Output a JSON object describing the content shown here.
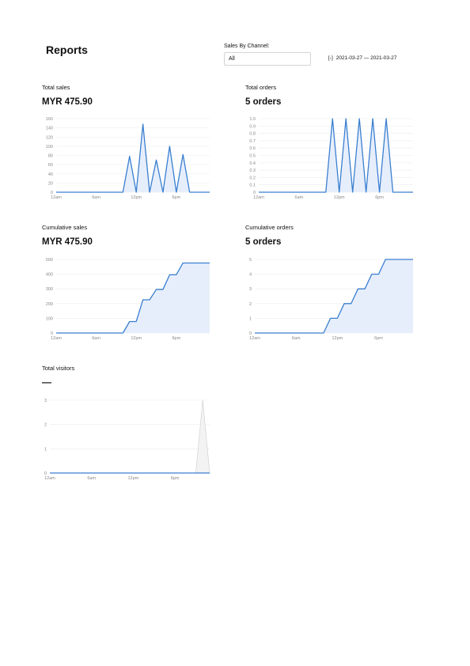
{
  "header": {
    "title": "Reports",
    "channel_label": "Sales By Channel:",
    "channel_value": "All",
    "calendar_icon": "calendar-icon",
    "date_range": "2021-03-27 — 2021-03-27"
  },
  "cards": {
    "total_sales": {
      "label": "Total sales",
      "value": "MYR 475.90"
    },
    "total_orders": {
      "label": "Total orders",
      "value": "5 orders"
    },
    "cumulative_sales": {
      "label": "Cumulative sales",
      "value": "MYR 475.90"
    },
    "cumulative_orders": {
      "label": "Cumulative orders",
      "value": "5 orders"
    },
    "total_visitors": {
      "label": "Total visitors",
      "value": "—"
    }
  },
  "colors": {
    "line": "#3a7fd0",
    "fill": "#e6eefb",
    "grid": "#ececec",
    "visitors_fill": "#f3f3f3"
  },
  "chart_data": [
    {
      "id": "total_sales",
      "type": "area",
      "x": [
        0,
        1,
        2,
        3,
        4,
        5,
        6,
        7,
        8,
        9,
        10,
        11,
        12,
        13,
        14,
        15,
        16,
        17,
        18,
        19,
        20,
        21,
        22,
        23
      ],
      "x_ticks": [
        {
          "x": 0,
          "label": "12am"
        },
        {
          "x": 6,
          "label": "6am"
        },
        {
          "x": 12,
          "label": "12pm"
        },
        {
          "x": 18,
          "label": "6pm"
        }
      ],
      "y_ticks": [
        0,
        20,
        40,
        60,
        80,
        100,
        120,
        140,
        160
      ],
      "ylim": [
        0,
        160
      ],
      "values": [
        0,
        0,
        0,
        0,
        0,
        0,
        0,
        0,
        0,
        0,
        0,
        78,
        0,
        148,
        0,
        70,
        0,
        100,
        0,
        82,
        0,
        0,
        0,
        0
      ]
    },
    {
      "id": "total_orders",
      "type": "area",
      "x": [
        0,
        1,
        2,
        3,
        4,
        5,
        6,
        7,
        8,
        9,
        10,
        11,
        12,
        13,
        14,
        15,
        16,
        17,
        18,
        19,
        20,
        21,
        22,
        23
      ],
      "x_ticks": [
        {
          "x": 0,
          "label": "12am"
        },
        {
          "x": 6,
          "label": "6am"
        },
        {
          "x": 12,
          "label": "12pm"
        },
        {
          "x": 18,
          "label": "6pm"
        }
      ],
      "y_ticks": [
        "0",
        "0.1",
        "0.2",
        "0.3",
        "0.4",
        "0.5",
        "0.6",
        "0.7",
        "0.8",
        "0.9",
        "1.0"
      ],
      "ylim": [
        0,
        1
      ],
      "values": [
        0,
        0,
        0,
        0,
        0,
        0,
        0,
        0,
        0,
        0,
        0,
        1,
        0,
        1,
        0,
        1,
        0,
        1,
        0,
        1,
        0,
        0,
        0,
        0
      ]
    },
    {
      "id": "cumulative_sales",
      "type": "area",
      "x": [
        0,
        1,
        2,
        3,
        4,
        5,
        6,
        7,
        8,
        9,
        10,
        11,
        12,
        13,
        14,
        15,
        16,
        17,
        18,
        19,
        20,
        21,
        22,
        23
      ],
      "x_ticks": [
        {
          "x": 0,
          "label": "12am"
        },
        {
          "x": 6,
          "label": "6am"
        },
        {
          "x": 12,
          "label": "12pm"
        },
        {
          "x": 18,
          "label": "6pm"
        }
      ],
      "y_ticks": [
        0,
        100,
        200,
        300,
        400,
        500
      ],
      "ylim": [
        0,
        500
      ],
      "values": [
        0,
        0,
        0,
        0,
        0,
        0,
        0,
        0,
        0,
        0,
        0,
        78,
        78,
        226,
        226,
        296,
        296,
        396,
        396,
        476,
        476,
        476,
        476,
        476
      ]
    },
    {
      "id": "cumulative_orders",
      "type": "area",
      "x": [
        0,
        1,
        2,
        3,
        4,
        5,
        6,
        7,
        8,
        9,
        10,
        11,
        12,
        13,
        14,
        15,
        16,
        17,
        18,
        19,
        20,
        21,
        22,
        23
      ],
      "x_ticks": [
        {
          "x": 0,
          "label": "12am"
        },
        {
          "x": 6,
          "label": "6am"
        },
        {
          "x": 12,
          "label": "12pm"
        },
        {
          "x": 18,
          "label": "6pm"
        }
      ],
      "y_ticks": [
        0,
        1,
        2,
        3,
        4,
        5
      ],
      "ylim": [
        0,
        5
      ],
      "values": [
        0,
        0,
        0,
        0,
        0,
        0,
        0,
        0,
        0,
        0,
        0,
        1,
        1,
        2,
        2,
        3,
        3,
        4,
        4,
        5,
        5,
        5,
        5,
        5
      ]
    },
    {
      "id": "total_visitors",
      "type": "area",
      "x": [
        0,
        1,
        2,
        3,
        4,
        5,
        6,
        7,
        8,
        9,
        10,
        11,
        12,
        13,
        14,
        15,
        16,
        17,
        18,
        19,
        20,
        21,
        22,
        23
      ],
      "x_ticks": [
        {
          "x": 0,
          "label": "12am"
        },
        {
          "x": 6,
          "label": "6am"
        },
        {
          "x": 12,
          "label": "12pm"
        },
        {
          "x": 18,
          "label": "6pm"
        }
      ],
      "y_ticks": [
        0,
        1,
        2,
        3
      ],
      "ylim": [
        0,
        3
      ],
      "values": [
        0,
        0,
        0,
        0,
        0,
        0,
        0,
        0,
        0,
        0,
        0,
        0,
        0,
        0,
        0,
        0,
        0,
        0,
        0,
        0,
        0,
        0,
        0,
        0
      ],
      "visitors_overlay": [
        0,
        0,
        0,
        0,
        0,
        0,
        0,
        0,
        0,
        0,
        0,
        0,
        0,
        0,
        0,
        0,
        0,
        0,
        0,
        0,
        0,
        0,
        3,
        0
      ]
    }
  ]
}
